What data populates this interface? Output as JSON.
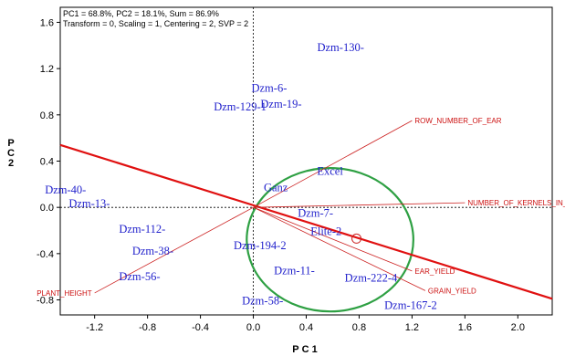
{
  "chart_data": {
    "type": "scatter",
    "title": "",
    "info_lines": [
      "PC1 = 68.8%, PC2 = 18.1%, Sum = 86.9%",
      "Transform = 0, Scaling = 1, Centering = 2, SVP = 2"
    ],
    "xlabel": "PC1",
    "ylabel": "PC2",
    "xlim": [
      -1.46,
      2.26
    ],
    "ylim": [
      -0.93,
      1.73
    ],
    "x_ticks": [
      -1.2,
      -0.8,
      -0.4,
      0.0,
      0.4,
      0.8,
      1.2,
      1.6,
      2.0
    ],
    "x_tick_labels": [
      "-1.2",
      "-0.8",
      "-0.4",
      "0.0",
      "0.4",
      "0.8",
      "1.2",
      "1.6",
      "2.0"
    ],
    "y_ticks": [
      -0.8,
      -0.4,
      0.0,
      0.4,
      0.8,
      1.2,
      1.6
    ],
    "y_tick_labels": [
      "-0.8",
      "-0.4",
      "0.0",
      "0.4",
      "0.8",
      "1.2",
      "1.6"
    ],
    "grid": false,
    "genotypes": [
      {
        "label": "Dzm-130-",
        "x": 0.66,
        "y": 1.35
      },
      {
        "label": "Dzm-6-",
        "x": 0.12,
        "y": 1.0
      },
      {
        "label": "Dzm-19-",
        "x": 0.21,
        "y": 0.86
      },
      {
        "label": "Dzm-129-1",
        "x": -0.1,
        "y": 0.84
      },
      {
        "label": "Excel",
        "x": 0.58,
        "y": 0.28
      },
      {
        "label": "Ganz",
        "x": 0.17,
        "y": 0.14
      },
      {
        "label": "Dzm-40-",
        "x": -1.42,
        "y": 0.12
      },
      {
        "label": "Dzm-13-",
        "x": -1.24,
        "y": 0.0
      },
      {
        "label": "Dzm-7-",
        "x": 0.47,
        "y": -0.08
      },
      {
        "label": "Dzm-112-",
        "x": -0.84,
        "y": -0.22
      },
      {
        "label": "Elite-2",
        "x": 0.55,
        "y": -0.24
      },
      {
        "label": "Dzm-194-2",
        "x": 0.05,
        "y": -0.36
      },
      {
        "label": "Dzm-38-",
        "x": -0.76,
        "y": -0.41
      },
      {
        "label": "Dzm-11-",
        "x": 0.31,
        "y": -0.58
      },
      {
        "label": "Dzm-222-4",
        "x": 0.89,
        "y": -0.64
      },
      {
        "label": "Dzm-56-",
        "x": -0.86,
        "y": -0.63
      },
      {
        "label": "Dzm-58-",
        "x": 0.07,
        "y": -0.84
      },
      {
        "label": "Dzm-167-2",
        "x": 1.19,
        "y": -0.88
      }
    ],
    "trait_vectors": [
      {
        "label": "ROW_NUMBER_OF_EAR",
        "x": 1.2,
        "y": 0.75
      },
      {
        "label": "NUMBER_OF_KERNELS_IN_ROW",
        "x": 1.6,
        "y": 0.04
      },
      {
        "label": "EAR_YIELD",
        "x": 1.2,
        "y": -0.55
      },
      {
        "label": "GRAIN_YIELD",
        "x": 1.3,
        "y": -0.72
      },
      {
        "label": "PLANT_HEIGHT",
        "x": -1.2,
        "y": -0.74
      }
    ],
    "ideal_marker": {
      "x": 0.78,
      "y": -0.27
    },
    "aec_line": {
      "from": [
        -1.46,
        0.54
      ],
      "to": [
        2.26,
        -0.79
      ]
    },
    "circle": {
      "center": [
        0.58,
        -0.28
      ],
      "rx": 0.63,
      "ry": 0.62
    }
  }
}
